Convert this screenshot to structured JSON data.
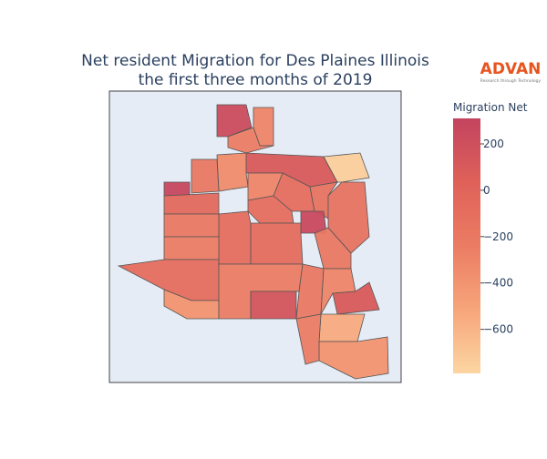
{
  "chart_data": {
    "type": "choropleth",
    "title": [
      "Net resident Migration for Des Plaines Illinois",
      "the first three months of 2019"
    ],
    "logo": {
      "name": "ADVAN",
      "tagline": "Research through Technology"
    },
    "colorbar_title": "Migration Net",
    "zlim": [
      -790,
      310
    ],
    "zticks": [
      200,
      0,
      {
        "value": -200,
        "label": "−200"
      },
      {
        "value": -400,
        "label": "−400"
      },
      {
        "value": -600,
        "label": "−600"
      }
    ],
    "colorscale": [
      "#fcd6a2",
      "#f7a57a",
      "#eb7c63",
      "#df6159",
      "#c3445f"
    ],
    "values": [
      230,
      -300,
      -250,
      100,
      -750,
      -350,
      -200,
      280,
      -50,
      -300,
      -100,
      -150,
      -150,
      250,
      -100,
      -100,
      -200,
      -250,
      -80,
      -200,
      -100,
      -400,
      -250,
      150,
      -200,
      -300,
      100,
      -550,
      -400,
      -250
    ]
  }
}
